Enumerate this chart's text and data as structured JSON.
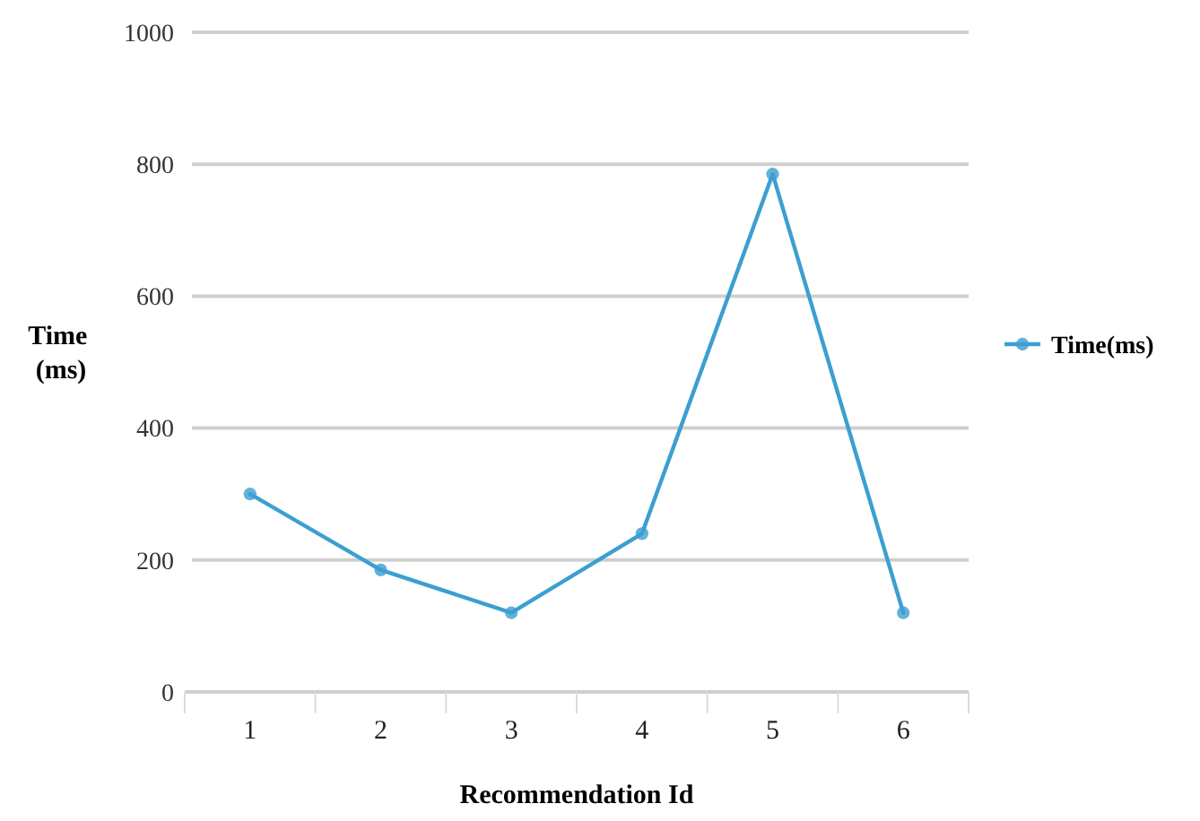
{
  "chart_data": {
    "type": "line",
    "xlabel": "Recommendation Id",
    "ylabel": "Time (ms)",
    "categories": [
      "1",
      "2",
      "3",
      "4",
      "5",
      "6"
    ],
    "series": [
      {
        "name": "Time(ms)",
        "color": "#3c9fd0",
        "values": [
          300,
          185,
          120,
          240,
          785,
          120
        ]
      }
    ],
    "ylim": [
      0,
      1000
    ],
    "yticks": [
      0,
      200,
      400,
      600,
      800,
      1000
    ],
    "grid": "y",
    "legend": "right",
    "marker": "circle",
    "line_style": "solid"
  }
}
